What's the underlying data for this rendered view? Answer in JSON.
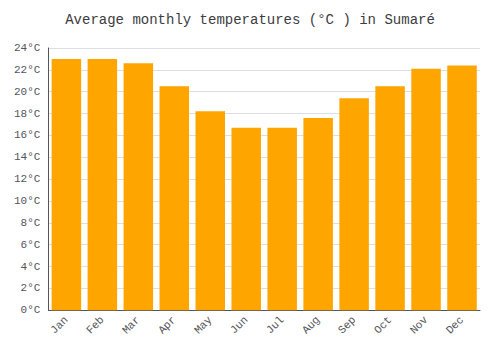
{
  "chart_data": {
    "type": "bar",
    "title": "Average monthly temperatures (°C ) in Sumaré",
    "categories": [
      "Jan",
      "Feb",
      "Mar",
      "Apr",
      "May",
      "Jun",
      "Jul",
      "Aug",
      "Sep",
      "Oct",
      "Nov",
      "Dec"
    ],
    "values": [
      23.0,
      23.0,
      22.6,
      20.5,
      18.2,
      16.7,
      16.7,
      17.6,
      19.4,
      20.5,
      22.1,
      22.4
    ],
    "color": "#FFA500",
    "ylim": [
      0,
      24
    ],
    "yticks": [
      {
        "value": 0,
        "label": "0°C"
      },
      {
        "value": 2,
        "label": "2°C"
      },
      {
        "value": 4,
        "label": "4°C"
      },
      {
        "value": 6,
        "label": "6°C"
      },
      {
        "value": 8,
        "label": "8°C"
      },
      {
        "value": 10,
        "label": "10°C"
      },
      {
        "value": 12,
        "label": "12°C"
      },
      {
        "value": 14,
        "label": "14°C"
      },
      {
        "value": 16,
        "label": "16°C"
      },
      {
        "value": 18,
        "label": "18°C"
      },
      {
        "value": 20,
        "label": "20°C"
      },
      {
        "value": 22,
        "label": "22°C"
      },
      {
        "value": 24,
        "label": "24°C"
      }
    ],
    "grid": true
  }
}
